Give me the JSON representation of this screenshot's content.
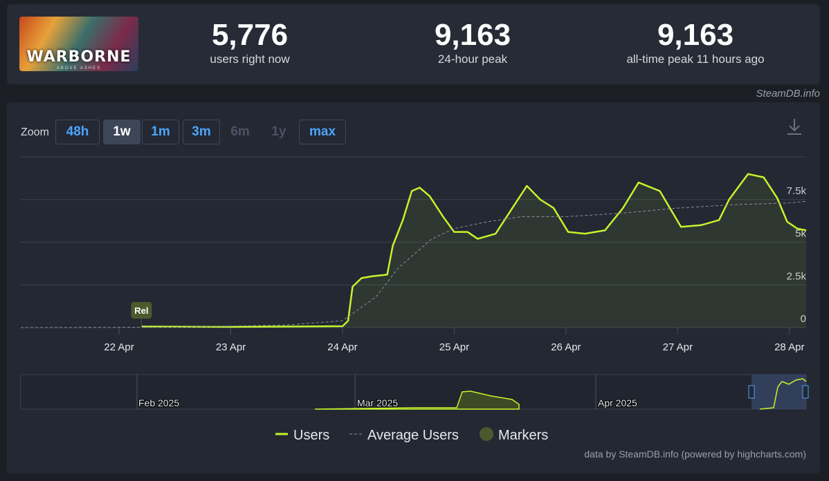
{
  "logo": {
    "title": "WARBORNE",
    "subtitle": "ABOVE ASHES"
  },
  "stats": [
    {
      "value": "5,776",
      "label": "users right now"
    },
    {
      "value": "9,163",
      "label": "24-hour peak"
    },
    {
      "value": "9,163",
      "label": "all-time peak 11 hours ago"
    }
  ],
  "source": "SteamDB.info",
  "zoom": {
    "label": "Zoom",
    "buttons": [
      "48h",
      "1w",
      "1m",
      "3m",
      "6m",
      "1y",
      "max"
    ]
  },
  "chart_data": {
    "type": "line",
    "xlim": [
      21.12,
      28.15
    ],
    "xticks": [
      {
        "value": 22,
        "label": "22 Apr"
      },
      {
        "value": 23,
        "label": "23 Apr"
      },
      {
        "value": 24,
        "label": "24 Apr"
      },
      {
        "value": 25,
        "label": "25 Apr"
      },
      {
        "value": 26,
        "label": "26 Apr"
      },
      {
        "value": 27,
        "label": "27 Apr"
      },
      {
        "value": 28,
        "label": "28 Apr"
      }
    ],
    "ylim": [
      0,
      10000
    ],
    "yticks": [
      0,
      {
        "value": 2500,
        "label": "2.5k"
      },
      {
        "value": 5000,
        "label": "5k"
      },
      {
        "value": 7500,
        "label": "7.5k"
      }
    ],
    "grid": true,
    "series": [
      {
        "name": "Users",
        "color": "#c5f42c",
        "x": [
          22.2,
          23.0,
          24.0,
          24.05,
          24.09,
          24.17,
          24.26,
          24.4,
          24.45,
          24.54,
          24.62,
          24.69,
          24.78,
          24.9,
          25.0,
          25.12,
          25.21,
          25.37,
          25.52,
          25.65,
          25.77,
          25.89,
          26.02,
          26.17,
          26.35,
          26.51,
          26.65,
          26.84,
          27.03,
          27.21,
          27.37,
          27.46,
          27.63,
          27.77,
          27.89,
          27.98,
          28.07,
          28.15
        ],
        "values": [
          60,
          40,
          80,
          400,
          2400,
          2900,
          3000,
          3100,
          4800,
          6300,
          8000,
          8200,
          7700,
          6500,
          5600,
          5600,
          5200,
          5500,
          7000,
          8300,
          7500,
          7000,
          5600,
          5500,
          5700,
          7000,
          8500,
          8000,
          5900,
          6000,
          6300,
          7500,
          9000,
          8800,
          7600,
          6200,
          5800,
          5700
        ]
      },
      {
        "name": "Average Users",
        "color": "#8a8f98",
        "dashed": true,
        "x": [
          21.12,
          22.5,
          23.5,
          24.0,
          24.3,
          24.5,
          24.8,
          25.0,
          25.3,
          25.6,
          26.0,
          26.5,
          27.0,
          27.5,
          28.0,
          28.15
        ],
        "values": [
          0,
          20,
          150,
          400,
          1800,
          3500,
          5200,
          5800,
          6200,
          6500,
          6500,
          6700,
          7000,
          7200,
          7300,
          7400
        ]
      }
    ],
    "markers": {
      "name": "Markers",
      "color": "#4a5a2c",
      "points": [
        {
          "x": 22.2,
          "label": "Rel"
        }
      ]
    },
    "navigator_labels": [
      "Feb 2025",
      "Mar 2025",
      "Apr 2025"
    ],
    "credits": "data by SteamDB.info (powered by highcharts.com)"
  }
}
